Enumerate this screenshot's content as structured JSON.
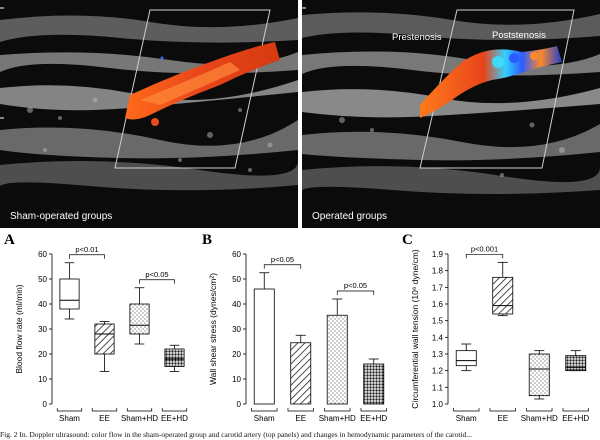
{
  "ultrasound": {
    "left_caption": "Sham-operated groups",
    "right_caption": "Operated groups",
    "prestenosis_label": "Prestenosis",
    "poststenosis_label": "Poststenosis"
  },
  "panels": {
    "A": {
      "letter": "A",
      "significance": [
        "p<0.01",
        "p<0.05"
      ]
    },
    "B": {
      "letter": "B",
      "significance": [
        "p<0.05",
        "p<0.05"
      ]
    },
    "C": {
      "letter": "C",
      "significance": [
        "p<0.001"
      ]
    }
  },
  "caption_text": "Fig. 2 In. Doppler ultrasound: color flow in the sham-operated group and carotid artery (top panels) and changes in hemodynamic parameters of the carotid...",
  "chart_data": [
    {
      "type": "boxplot",
      "panel": "A",
      "ylabel": "Blood flow rate (ml/min)",
      "ylim": [
        0,
        60
      ],
      "yticks": [
        0,
        10,
        20,
        30,
        40,
        50,
        60
      ],
      "categories": [
        "Sham",
        "EE",
        "Sham+HD",
        "EE+HD"
      ],
      "boxes": [
        {
          "category": "Sham",
          "min": 34,
          "q1": 38,
          "median": 41.5,
          "q3": 50,
          "max": 56.5,
          "fill": "none"
        },
        {
          "category": "EE",
          "min": 13,
          "q1": 20,
          "median": 28,
          "q3": 32,
          "max": 33,
          "fill": "hatch"
        },
        {
          "category": "Sham+HD",
          "min": 24,
          "q1": 28,
          "median": 31.5,
          "q3": 40,
          "max": 46.5,
          "fill": "dots"
        },
        {
          "category": "EE+HD",
          "min": 13,
          "q1": 15,
          "median": 18,
          "q3": 22,
          "max": 23.5,
          "fill": "crosshatch"
        }
      ],
      "annotations": [
        {
          "text": "p<0.01",
          "between": [
            "Sham",
            "EE"
          ]
        },
        {
          "text": "p<0.05",
          "between": [
            "Sham+HD",
            "EE+HD"
          ]
        }
      ]
    },
    {
      "type": "bar",
      "panel": "B",
      "ylabel": "Wall shear stress (dynes/cm²)",
      "ylim": [
        0,
        60
      ],
      "yticks": [
        0,
        10,
        20,
        30,
        40,
        50,
        60
      ],
      "categories": [
        "Sham",
        "EE",
        "Sham+HD",
        "EE+HD"
      ],
      "values": [
        46,
        24.5,
        35.5,
        16
      ],
      "errors": [
        6.5,
        3,
        6.5,
        2
      ],
      "fills": [
        "none",
        "hatch",
        "dots",
        "crosshatch"
      ],
      "annotations": [
        {
          "text": "p<0.05",
          "between": [
            "Sham",
            "EE"
          ]
        },
        {
          "text": "p<0.05",
          "between": [
            "Sham+HD",
            "EE+HD"
          ]
        }
      ]
    },
    {
      "type": "boxplot",
      "panel": "C",
      "ylabel": "Circumferential wall tension (10⁶ dyne/cm)",
      "ylim": [
        1.0,
        1.9
      ],
      "yticks": [
        1.0,
        1.1,
        1.2,
        1.3,
        1.4,
        1.5,
        1.6,
        1.7,
        1.8,
        1.9
      ],
      "categories": [
        "Sham",
        "EE",
        "Sham+HD",
        "EE+HD"
      ],
      "boxes": [
        {
          "category": "Sham",
          "min": 1.2,
          "q1": 1.23,
          "median": 1.26,
          "q3": 1.32,
          "max": 1.36,
          "fill": "none"
        },
        {
          "category": "EE",
          "min": 1.53,
          "q1": 1.54,
          "median": 1.59,
          "q3": 1.76,
          "max": 1.85,
          "fill": "hatch"
        },
        {
          "category": "Sham+HD",
          "min": 1.03,
          "q1": 1.05,
          "median": 1.21,
          "q3": 1.3,
          "max": 1.32,
          "fill": "dots"
        },
        {
          "category": "EE+HD",
          "min": 1.2,
          "q1": 1.2,
          "median": 1.22,
          "q3": 1.29,
          "max": 1.32,
          "fill": "crosshatch"
        }
      ],
      "annotations": [
        {
          "text": "p<0.001",
          "between": [
            "Sham",
            "EE"
          ]
        }
      ]
    }
  ]
}
